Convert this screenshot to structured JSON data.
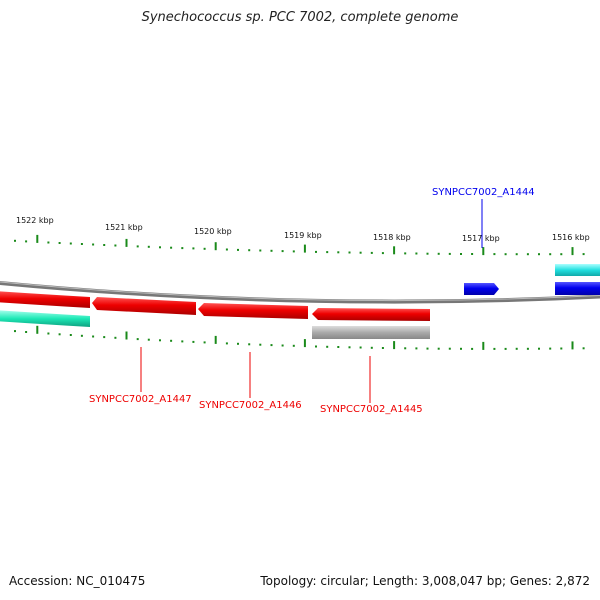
{
  "title": "Synechococcus sp. PCC 7002, complete genome",
  "footer": {
    "accession": "Accession: NC_010475",
    "summary": "Topology: circular; Length: 3,008,047 bp; Genes: 2,872"
  },
  "scale_labels": [
    "1522 kbp",
    "1521 kbp",
    "1520 kbp",
    "1519 kbp",
    "1518 kbp",
    "1517 kbp",
    "1516 kbp"
  ],
  "gene_labels": {
    "a1444": "SYNPCC7002_A1444",
    "a1447": "SYNPCC7002_A1447",
    "a1446": "SYNPCC7002_A1446",
    "a1445": "SYNPCC7002_A1445"
  },
  "colors": {
    "forward_gene": "#0000ee",
    "reverse_gene": "#ee0000",
    "rna_feature": "#1de9b6",
    "other_feature": "#aaaaaa",
    "backbone": "#777777",
    "ticks": "#1a8a1a"
  }
}
